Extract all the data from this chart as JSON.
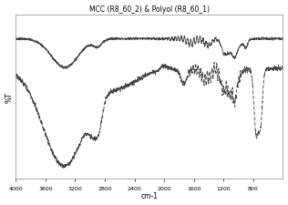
{
  "title": "MCC (R8_60_2) & Polyol (R8_60_1)",
  "xlabel": "cm-1",
  "ylabel": "%T",
  "xticks": [
    4000,
    3600,
    3200,
    2800,
    2400,
    2000,
    1600,
    1200,
    800
  ],
  "background_color": "#ffffff",
  "line_color": "#444444"
}
